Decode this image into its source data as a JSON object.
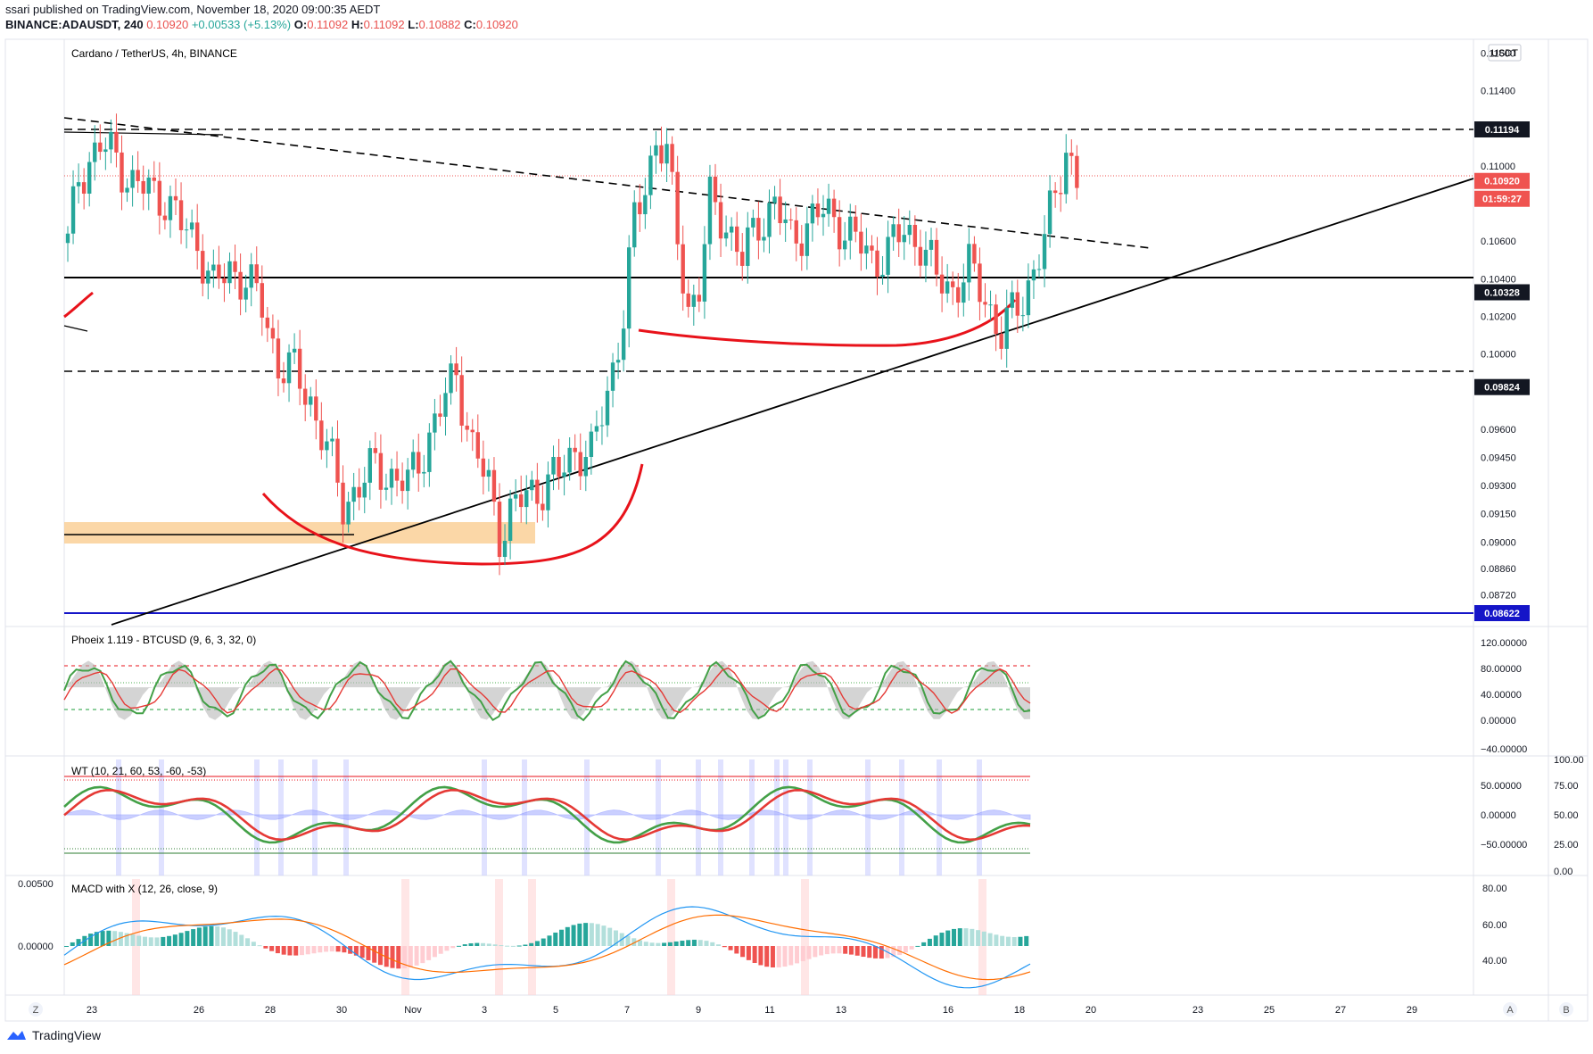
{
  "header": {
    "line1": "ssari published on TradingView.com, November 18, 2020 09:00:35 AEDT",
    "symbol": "BINANCE:ADAUSDT, 240",
    "last": "0.10920",
    "change": "+0.00533 (+5.13%)",
    "o_label": "O:",
    "o": "0.11092",
    "h_label": "H:",
    "h": "0.11092",
    "l_label": "L:",
    "l": "0.10882",
    "c_label": "C:",
    "c": "0.10920"
  },
  "main_title": "Cardano / TetherUS, 4h, BINANCE",
  "currency_badge": "USDT",
  "price_axis": [
    "0.11600",
    "0.11400",
    "0.11000",
    "0.10600",
    "0.10400",
    "0.10200",
    "0.10000",
    "0.09600",
    "0.09450",
    "0.09300",
    "0.09150",
    "0.09000",
    "0.08860",
    "0.08720"
  ],
  "price_labels": [
    {
      "text": "0.11194",
      "style": "dark"
    },
    {
      "text": "0.10920",
      "style": "red"
    },
    {
      "text": "01:59:27",
      "style": "red"
    },
    {
      "text": "0.10328",
      "style": "dark"
    },
    {
      "text": "0.09824",
      "style": "dark"
    },
    {
      "text": "0.08622",
      "style": "blue"
    }
  ],
  "time_axis": [
    "23",
    "26",
    "28",
    "30",
    "Nov",
    "3",
    "5",
    "7",
    "9",
    "11",
    "13",
    "16",
    "18",
    "20",
    "23",
    "25",
    "27",
    "29"
  ],
  "indicators": {
    "phoeix": {
      "title": "Phoeix 1.119 - BTCUSD (9, 6, 3, 32, 0)",
      "axis": [
        "120.00000",
        "80.00000",
        "40.00000",
        "0.00000",
        "−40.00000"
      ]
    },
    "wt": {
      "title": "WT (10, 21, 60, 53, -60, -53)",
      "axis": [
        "50.00000",
        "0.00000",
        "−50.00000"
      ],
      "axis2": [
        "100.00",
        "75.00",
        "50.00",
        "25.00",
        "0.00"
      ]
    },
    "macd": {
      "title": "MACD with X (12, 26, close, 9)",
      "left_axis": [
        "0.00500",
        "0.00000"
      ],
      "axis": [
        "80.00",
        "60.00",
        "40.00"
      ]
    }
  },
  "axis_buttons": {
    "z": "Z",
    "a": "A",
    "b": "B"
  },
  "footer": {
    "brand": "TradingView"
  },
  "colors": {
    "up": "#26a69a",
    "down": "#ef5350",
    "red_line": "#e8121a",
    "blue_line": "#1515c8",
    "zone": "#f9c98a"
  },
  "chart_data": {
    "type": "candlestick",
    "title": "Cardano / TetherUS, 4h, BINANCE",
    "ylim": [
      0.0859,
      0.1178
    ],
    "x_dates": [
      "Oct 23",
      "Oct 26",
      "Oct 28",
      "Oct 30",
      "Nov 1",
      "Nov 3",
      "Nov 5",
      "Nov 7",
      "Nov 9",
      "Nov 11",
      "Nov 13",
      "Nov 16",
      "Nov 18",
      "Nov 20",
      "Nov 23",
      "Nov 25",
      "Nov 27",
      "Nov 29"
    ],
    "horizontal_levels": [
      0.11194,
      0.10328,
      0.09824,
      0.08622
    ],
    "current_price": 0.1092,
    "close_anchors": [
      [
        0,
        0.1058
      ],
      [
        2,
        0.1095
      ],
      [
        4,
        0.1103
      ],
      [
        6,
        0.111
      ],
      [
        9,
        0.1105
      ],
      [
        12,
        0.109
      ],
      [
        15,
        0.1087
      ],
      [
        18,
        0.1083
      ],
      [
        21,
        0.1068
      ],
      [
        24,
        0.106
      ],
      [
        27,
        0.1035
      ],
      [
        30,
        0.1045
      ],
      [
        33,
        0.104
      ],
      [
        36,
        0.1025
      ],
      [
        39,
        0.0995
      ],
      [
        42,
        0.099
      ],
      [
        45,
        0.0975
      ],
      [
        48,
        0.095
      ],
      [
        51,
        0.092
      ],
      [
        54,
        0.093
      ],
      [
        57,
        0.094
      ],
      [
        60,
        0.0935
      ],
      [
        63,
        0.093
      ],
      [
        66,
        0.095
      ],
      [
        69,
        0.097
      ],
      [
        72,
        0.099
      ],
      [
        75,
        0.095
      ],
      [
        78,
        0.093
      ],
      [
        80,
        0.0905
      ],
      [
        82,
        0.0915
      ],
      [
        85,
        0.0925
      ],
      [
        88,
        0.093
      ],
      [
        91,
        0.0935
      ],
      [
        94,
        0.095
      ],
      [
        97,
        0.0945
      ],
      [
        100,
        0.098
      ],
      [
        103,
        0.102
      ],
      [
        105,
        0.107
      ],
      [
        107,
        0.109
      ],
      [
        109,
        0.1115
      ],
      [
        111,
        0.1105
      ],
      [
        113,
        0.106
      ],
      [
        115,
        0.1025
      ],
      [
        117,
        0.1035
      ],
      [
        119,
        0.108
      ],
      [
        122,
        0.107
      ],
      [
        125,
        0.105
      ],
      [
        128,
        0.107
      ],
      [
        131,
        0.108
      ],
      [
        134,
        0.106
      ],
      [
        137,
        0.107
      ],
      [
        140,
        0.1075
      ],
      [
        143,
        0.107
      ],
      [
        146,
        0.106
      ],
      [
        149,
        0.105
      ],
      [
        152,
        0.1055
      ],
      [
        155,
        0.1065
      ],
      [
        158,
        0.106
      ],
      [
        161,
        0.104
      ],
      [
        164,
        0.1035
      ],
      [
        167,
        0.1045
      ],
      [
        170,
        0.103
      ],
      [
        173,
        0.101
      ],
      [
        175,
        0.102
      ],
      [
        177,
        0.103
      ],
      [
        179,
        0.1045
      ],
      [
        181,
        0.106
      ],
      [
        183,
        0.1085
      ],
      [
        185,
        0.111
      ],
      [
        187,
        0.1092
      ]
    ],
    "phoeix_levels": [
      80,
      40,
      55
    ],
    "wt_levels": [
      53,
      -53
    ]
  }
}
